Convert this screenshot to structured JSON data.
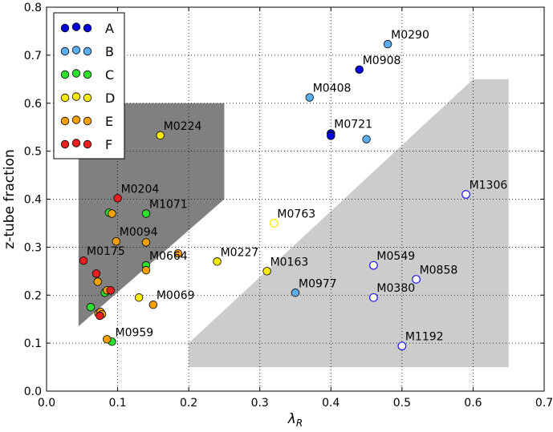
{
  "chart_data": {
    "type": "scatter",
    "title": "",
    "xlabel": "λ",
    "xlabel_subscript": "R",
    "ylabel": "z-tube fraction",
    "xlim": [
      0.0,
      0.7
    ],
    "ylim": [
      0.0,
      0.8
    ],
    "xticks": [
      0.0,
      0.1,
      0.2,
      0.3,
      0.4,
      0.5,
      0.6,
      0.7
    ],
    "yticks": [
      0.0,
      0.1,
      0.2,
      0.3,
      0.4,
      0.5,
      0.6,
      0.7,
      0.8
    ],
    "xtick_labels": [
      "0.0",
      "0.1",
      "0.2",
      "0.3",
      "0.4",
      "0.5",
      "0.6",
      "0.7"
    ],
    "ytick_labels": [
      "0.0",
      "0.1",
      "0.2",
      "0.3",
      "0.4",
      "0.5",
      "0.6",
      "0.7",
      "0.8"
    ],
    "grid": true,
    "legend_position": "top-left",
    "regions": [
      {
        "name": "dark-region",
        "color": "#808080",
        "points": [
          [
            0.045,
            0.135
          ],
          [
            0.045,
            0.6
          ],
          [
            0.25,
            0.6
          ],
          [
            0.25,
            0.4
          ]
        ]
      },
      {
        "name": "light-region",
        "color": "#cccccc",
        "points": [
          [
            0.2,
            0.05
          ],
          [
            0.2,
            0.1
          ],
          [
            0.6,
            0.65
          ],
          [
            0.65,
            0.65
          ],
          [
            0.65,
            0.05
          ]
        ]
      }
    ],
    "series": [
      {
        "name": "A",
        "color": "#0000d8",
        "points": [
          {
            "x": 0.44,
            "y": 0.67
          },
          {
            "x": 0.4,
            "y": 0.537
          },
          {
            "x": 0.4,
            "y": 0.532
          }
        ]
      },
      {
        "name": "B",
        "color": "#5aaef0",
        "points": [
          {
            "x": 0.48,
            "y": 0.723
          },
          {
            "x": 0.37,
            "y": 0.612
          },
          {
            "x": 0.45,
            "y": 0.525
          },
          {
            "x": 0.35,
            "y": 0.205
          }
        ]
      },
      {
        "name": "C",
        "color": "#2ee02e",
        "points": [
          {
            "x": 0.088,
            "y": 0.372
          },
          {
            "x": 0.14,
            "y": 0.37
          },
          {
            "x": 0.14,
            "y": 0.262
          },
          {
            "x": 0.082,
            "y": 0.205
          },
          {
            "x": 0.062,
            "y": 0.175
          },
          {
            "x": 0.092,
            "y": 0.103
          }
        ]
      },
      {
        "name": "D",
        "color": "#ffec00",
        "points": [
          {
            "x": 0.16,
            "y": 0.533
          },
          {
            "x": 0.24,
            "y": 0.27
          },
          {
            "x": 0.31,
            "y": 0.25
          },
          {
            "x": 0.13,
            "y": 0.195
          }
        ]
      },
      {
        "name": "E",
        "color": "#f4a000",
        "points": [
          {
            "x": 0.092,
            "y": 0.37
          },
          {
            "x": 0.098,
            "y": 0.312
          },
          {
            "x": 0.14,
            "y": 0.31
          },
          {
            "x": 0.185,
            "y": 0.287
          },
          {
            "x": 0.14,
            "y": 0.252
          },
          {
            "x": 0.072,
            "y": 0.228
          },
          {
            "x": 0.085,
            "y": 0.21
          },
          {
            "x": 0.15,
            "y": 0.18
          },
          {
            "x": 0.073,
            "y": 0.162
          },
          {
            "x": 0.076,
            "y": 0.165
          },
          {
            "x": 0.078,
            "y": 0.16
          },
          {
            "x": 0.085,
            "y": 0.108
          }
        ]
      },
      {
        "name": "F",
        "color": "#e82020",
        "points": [
          {
            "x": 0.1,
            "y": 0.402
          },
          {
            "x": 0.052,
            "y": 0.272
          },
          {
            "x": 0.07,
            "y": 0.245
          },
          {
            "x": 0.09,
            "y": 0.21
          },
          {
            "x": 0.075,
            "y": 0.157
          }
        ]
      },
      {
        "name": "D-open",
        "color": "#ffec00",
        "open": true,
        "points": [
          {
            "x": 0.32,
            "y": 0.35
          }
        ]
      },
      {
        "name": "open-blue",
        "color": "#1a1af0",
        "open": true,
        "points": [
          {
            "x": 0.59,
            "y": 0.41
          },
          {
            "x": 0.46,
            "y": 0.262
          },
          {
            "x": 0.52,
            "y": 0.233
          },
          {
            "x": 0.46,
            "y": 0.195
          },
          {
            "x": 0.5,
            "y": 0.094
          }
        ]
      }
    ],
    "annotations": [
      {
        "text": "M0290",
        "x": 0.48,
        "y": 0.723
      },
      {
        "text": "M0908",
        "x": 0.44,
        "y": 0.67
      },
      {
        "text": "M0408",
        "x": 0.37,
        "y": 0.612
      },
      {
        "text": "M0721",
        "x": 0.4,
        "y": 0.537
      },
      {
        "text": "M0224",
        "x": 0.16,
        "y": 0.533
      },
      {
        "text": "M1306",
        "x": 0.59,
        "y": 0.41
      },
      {
        "text": "M0204",
        "x": 0.1,
        "y": 0.402
      },
      {
        "text": "M1071",
        "x": 0.14,
        "y": 0.37
      },
      {
        "text": "M0763",
        "x": 0.32,
        "y": 0.35
      },
      {
        "text": "M0094",
        "x": 0.098,
        "y": 0.312
      },
      {
        "text": "M0175",
        "x": 0.052,
        "y": 0.272
      },
      {
        "text": "M0664",
        "x": 0.14,
        "y": 0.262
      },
      {
        "text": "M0227",
        "x": 0.24,
        "y": 0.27
      },
      {
        "text": "M0163",
        "x": 0.31,
        "y": 0.25
      },
      {
        "text": "M0549",
        "x": 0.46,
        "y": 0.262
      },
      {
        "text": "M0858",
        "x": 0.52,
        "y": 0.233
      },
      {
        "text": "M0977",
        "x": 0.35,
        "y": 0.205
      },
      {
        "text": "M0380",
        "x": 0.46,
        "y": 0.195
      },
      {
        "text": "M0069",
        "x": 0.15,
        "y": 0.18
      },
      {
        "text": "M0959",
        "x": 0.092,
        "y": 0.103
      },
      {
        "text": "M1192",
        "x": 0.5,
        "y": 0.094
      }
    ],
    "legend": [
      {
        "label": "A",
        "color": "#0000d8"
      },
      {
        "label": "B",
        "color": "#5aaef0"
      },
      {
        "label": "C",
        "color": "#2ee02e"
      },
      {
        "label": "D",
        "color": "#ffec00"
      },
      {
        "label": "E",
        "color": "#f4a000"
      },
      {
        "label": "F",
        "color": "#e82020"
      }
    ]
  }
}
